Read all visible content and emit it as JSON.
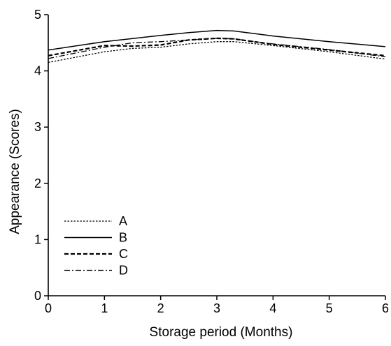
{
  "chart_data": {
    "type": "line",
    "title": "",
    "xlabel": "Storage period (Months)",
    "ylabel": "Appearance (Scores)",
    "xlim": [
      0,
      6
    ],
    "ylim": [
      0,
      5
    ],
    "x_ticks": [
      "0",
      "1",
      "2",
      "3",
      "4",
      "5",
      "6"
    ],
    "y_ticks": [
      "0",
      "1",
      "2",
      "3",
      "4",
      "5"
    ],
    "grid": false,
    "legend_position": "bottom-left",
    "series": [
      {
        "name": "A",
        "dash": "dotted",
        "x": [
          0,
          1,
          1.5,
          2,
          2.5,
          3,
          3.3,
          4,
          5,
          6
        ],
        "y": [
          4.15,
          4.34,
          4.4,
          4.42,
          4.48,
          4.52,
          4.52,
          4.45,
          4.34,
          4.21
        ]
      },
      {
        "name": "B",
        "dash": "solid",
        "x": [
          0,
          1,
          2,
          2.5,
          3,
          3.3,
          4,
          5,
          6
        ],
        "y": [
          4.37,
          4.52,
          4.63,
          4.68,
          4.72,
          4.71,
          4.62,
          4.52,
          4.43
        ]
      },
      {
        "name": "C",
        "dash": "dashed",
        "x": [
          0,
          1,
          1.5,
          2,
          2.5,
          3,
          3.3,
          4,
          5,
          6
        ],
        "y": [
          4.27,
          4.45,
          4.44,
          4.46,
          4.55,
          4.58,
          4.57,
          4.47,
          4.37,
          4.27
        ]
      },
      {
        "name": "D",
        "dash": "dash-dot",
        "x": [
          0,
          1,
          1.5,
          2,
          2.5,
          3,
          3.3,
          4,
          5,
          6
        ],
        "y": [
          4.22,
          4.42,
          4.5,
          4.52,
          4.55,
          4.58,
          4.57,
          4.48,
          4.38,
          4.25
        ]
      }
    ]
  }
}
